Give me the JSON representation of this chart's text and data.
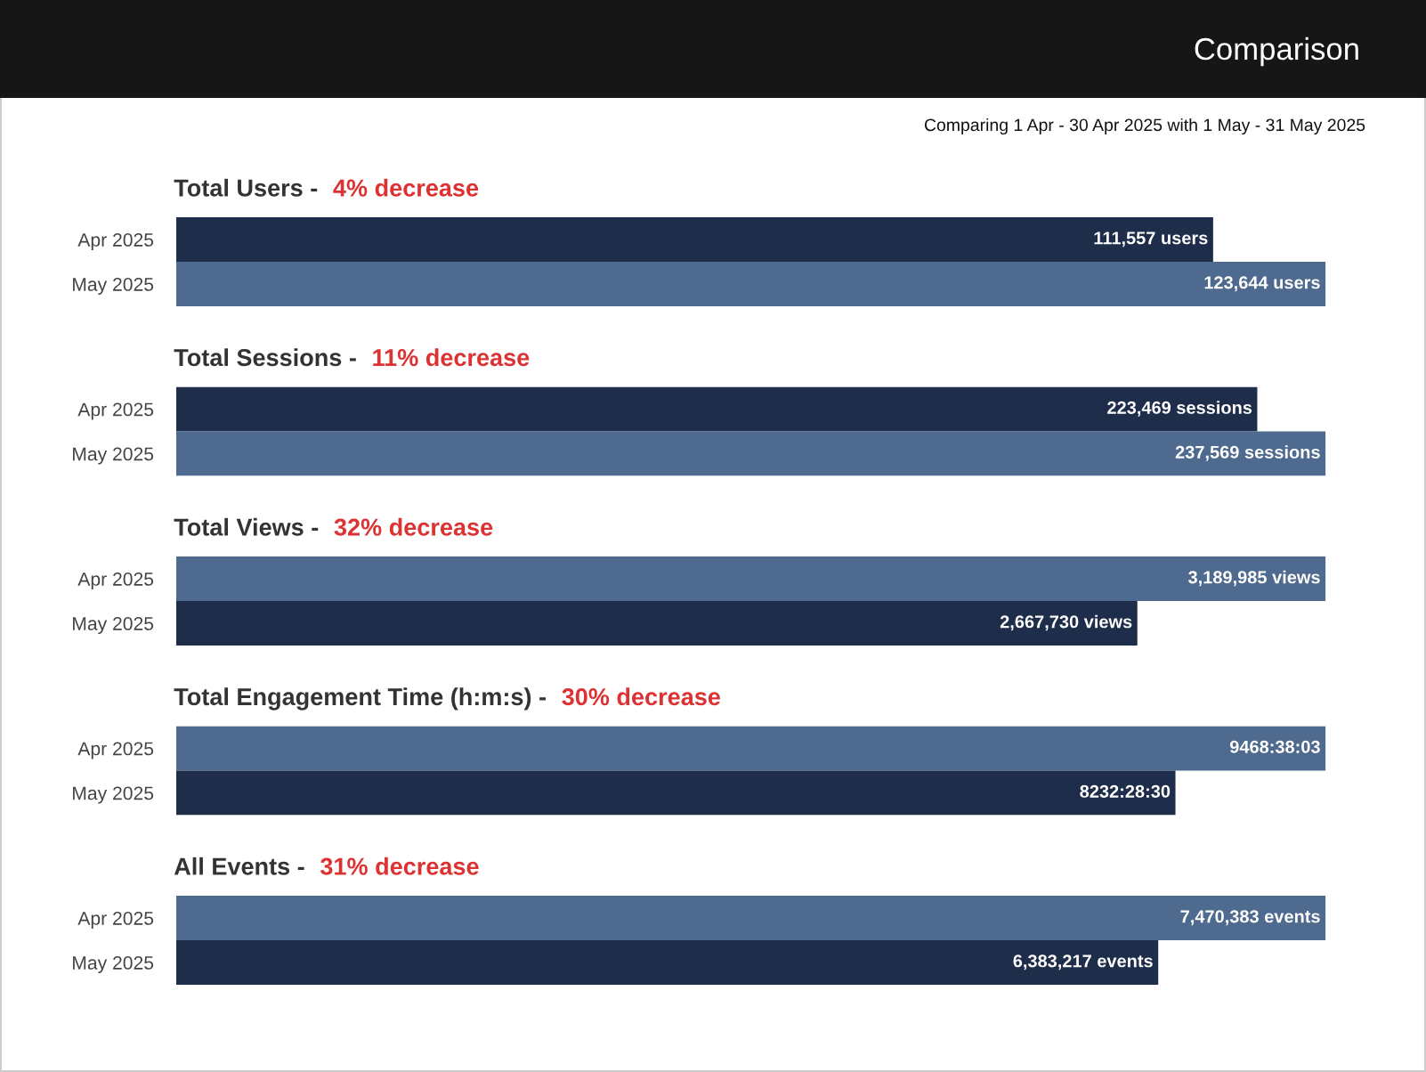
{
  "chart_data": [
    {
      "type": "other",
      "title": "Comparison",
      "subtitle": "Comparing 1 Apr - 30 Apr 2025 with 1 May - 31 May 2025"
    },
    {
      "type": "bar",
      "orientation": "horizontal",
      "title": "Total Users -",
      "subtitle": "4% decrease",
      "categories": [
        "Apr 2025",
        "May 2025"
      ],
      "values": [
        111557,
        123644
      ],
      "colors": [
        "#1e2d4a",
        "#4f6a8f"
      ],
      "value_labels": [
        "111,557 users",
        "123,644 users"
      ],
      "tick_labels": "y"
    },
    {
      "type": "bar",
      "orientation": "horizontal",
      "title": "Total Sessions -",
      "subtitle": "11% decrease",
      "categories": [
        "Apr 2025",
        "May 2025"
      ],
      "values": [
        223469,
        237569
      ],
      "colors": [
        "#1e2d4a",
        "#4f6a8f"
      ],
      "value_labels": [
        "223,469 sessions",
        "237,569 sessions"
      ],
      "tick_labels": "y"
    },
    {
      "type": "bar",
      "orientation": "horizontal",
      "title": "Total Views -",
      "subtitle": "32% decrease",
      "categories": [
        "Apr 2025",
        "May 2025"
      ],
      "values": [
        3189985,
        2667730
      ],
      "colors": [
        "#4f6a8f",
        "#1e2d4a"
      ],
      "value_labels": [
        "3,189,985 views",
        "2,667,730 views"
      ],
      "tick_labels": "y"
    },
    {
      "type": "bar",
      "orientation": "horizontal",
      "title": "Total Engagement Time (h:m:s) -",
      "subtitle": "30% decrease",
      "categories": [
        "Apr 2025",
        "May 2025"
      ],
      "values": [
        9468.634,
        8232.475
      ],
      "colors": [
        "#4f6a8f",
        "#1e2d4a"
      ],
      "value_labels": [
        "9468:38:03",
        "8232:28:30"
      ],
      "tick_labels": "y"
    },
    {
      "type": "bar",
      "orientation": "horizontal",
      "title": "All Events -",
      "subtitle": "31% decrease",
      "categories": [
        "Apr 2025",
        "May 2025"
      ],
      "values": [
        7470383,
        6383217
      ],
      "colors": [
        "#4f6a8f",
        "#1e2d4a"
      ],
      "value_labels": [
        "7,470,383 events",
        "6,383,217 events"
      ],
      "tick_labels": "y"
    }
  ]
}
